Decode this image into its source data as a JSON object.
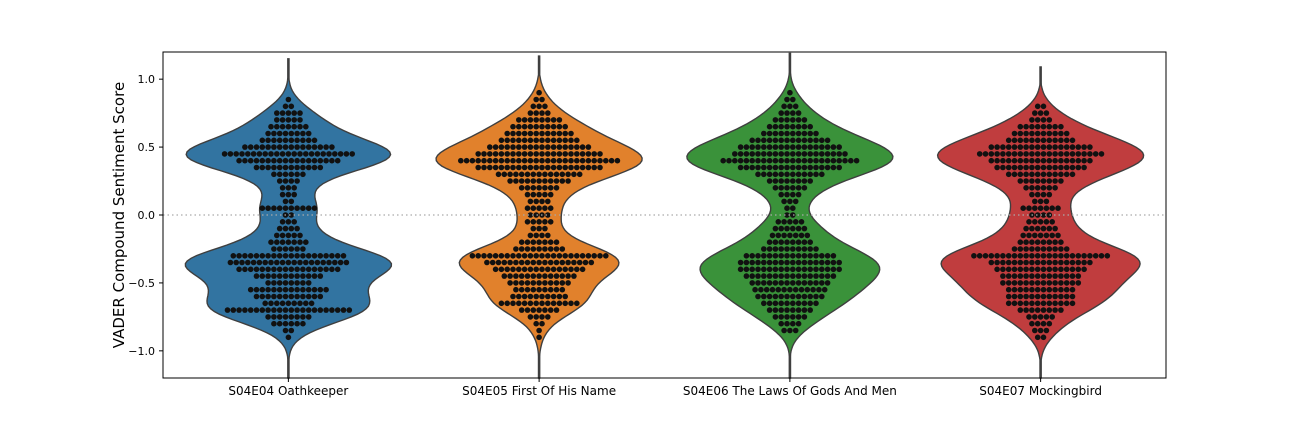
{
  "chart_data": {
    "type": "violin",
    "categories": [
      "S04E04 Oathkeeper",
      "S04E05 First Of His Name",
      "S04E06 The Laws Of Gods And Men",
      "S04E07 Mockingbird"
    ],
    "colors": [
      "#3274a1",
      "#e1812c",
      "#3a923a",
      "#c03d3e"
    ],
    "xlabel": "",
    "ylabel": "VADER Compound Sentiment Score",
    "ylim": [
      -1.2,
      1.2
    ],
    "yticks": [
      -1.0,
      -0.5,
      0.0,
      0.5,
      1.0
    ],
    "ytick_labels": [
      "−1.0",
      "−0.5",
      "0.0",
      "0.5",
      "1.0"
    ],
    "reference_line": {
      "y": 0.0,
      "style": "dotted",
      "color": "#aaaaaa"
    },
    "series": [
      {
        "category": "S04E04 Oathkeeper",
        "violin_extent": [
          -1.2,
          1.15
        ],
        "modes": [
          0.44,
          -0.4
        ],
        "points_per_bin": {
          "0.85": 1,
          "0.8": 2,
          "0.75": 5,
          "0.7": 5,
          "0.65": 7,
          "0.6": 8,
          "0.55": 10,
          "0.5": 16,
          "0.45": 23,
          "0.4": 18,
          "0.35": 12,
          "0.3": 6,
          "0.25": 4,
          "0.2": 3,
          "0.15": 3,
          "0.1": 2,
          "0.05": 10,
          "0.0": 2,
          "-0.05": 3,
          "-0.1": 4,
          "-0.15": 5,
          "-0.2": 7,
          "-0.25": 6,
          "-0.3": 20,
          "-0.35": 21,
          "-0.4": 18,
          "-0.45": 12,
          "-0.5": 8,
          "-0.55": 14,
          "-0.6": 12,
          "-0.65": 9,
          "-0.7": 22,
          "-0.75": 8,
          "-0.8": 6,
          "-0.85": 2,
          "-0.9": 1
        }
      },
      {
        "category": "S04E05 First Of His Name",
        "violin_extent": [
          -1.2,
          1.17
        ],
        "modes": [
          0.42,
          -0.32
        ],
        "points_per_bin": {
          "0.9": 1,
          "0.85": 2,
          "0.8": 3,
          "0.75": 4,
          "0.7": 8,
          "0.65": 10,
          "0.6": 12,
          "0.55": 14,
          "0.5": 18,
          "0.45": 22,
          "0.4": 28,
          "0.35": 22,
          "0.3": 15,
          "0.25": 11,
          "0.2": 7,
          "0.15": 5,
          "0.1": 4,
          "0.05": 5,
          "0.0": 4,
          "-0.05": 5,
          "-0.1": 3,
          "-0.15": 4,
          "-0.2": 7,
          "-0.25": 9,
          "-0.3": 24,
          "-0.35": 19,
          "-0.4": 16,
          "-0.45": 13,
          "-0.5": 11,
          "-0.55": 9,
          "-0.6": 10,
          "-0.65": 14,
          "-0.7": 7,
          "-0.75": 4,
          "-0.8": 2,
          "-0.85": 1,
          "-0.9": 1
        }
      },
      {
        "category": "S04E06 The Laws Of Gods And Men",
        "violin_extent": [
          -1.2,
          1.19
        ],
        "modes": [
          0.42,
          -0.4
        ],
        "points_per_bin": {
          "0.9": 1,
          "0.85": 2,
          "0.8": 3,
          "0.75": 4,
          "0.7": 6,
          "0.65": 8,
          "0.6": 10,
          "0.55": 14,
          "0.5": 18,
          "0.45": 20,
          "0.4": 24,
          "0.35": 18,
          "0.3": 12,
          "0.25": 8,
          "0.2": 6,
          "0.15": 4,
          "0.1": 3,
          "0.05": 2,
          "0.0": 2,
          "-0.05": 5,
          "-0.1": 6,
          "-0.15": 7,
          "-0.2": 8,
          "-0.25": 10,
          "-0.3": 16,
          "-0.35": 18,
          "-0.4": 18,
          "-0.45": 16,
          "-0.5": 14,
          "-0.55": 13,
          "-0.6": 12,
          "-0.65": 10,
          "-0.7": 8,
          "-0.75": 6,
          "-0.8": 4,
          "-0.85": 3
        }
      },
      {
        "category": "S04E07 Mockingbird",
        "violin_extent": [
          -1.2,
          1.09
        ],
        "modes": [
          0.42,
          -0.32
        ],
        "points_per_bin": {
          "0.8": 2,
          "0.75": 3,
          "0.7": 4,
          "0.65": 8,
          "0.6": 10,
          "0.55": 12,
          "0.5": 18,
          "0.45": 22,
          "0.4": 18,
          "0.35": 16,
          "0.3": 12,
          "0.25": 8,
          "0.2": 6,
          "0.15": 4,
          "0.1": 3,
          "0.05": 7,
          "0.0": 4,
          "-0.05": 5,
          "-0.1": 6,
          "-0.15": 7,
          "-0.2": 8,
          "-0.25": 10,
          "-0.3": 24,
          "-0.35": 18,
          "-0.4": 16,
          "-0.45": 14,
          "-0.5": 14,
          "-0.55": 12,
          "-0.6": 12,
          "-0.65": 12,
          "-0.7": 8,
          "-0.75": 5,
          "-0.8": 4,
          "-0.85": 3,
          "-0.9": 2
        }
      }
    ]
  }
}
